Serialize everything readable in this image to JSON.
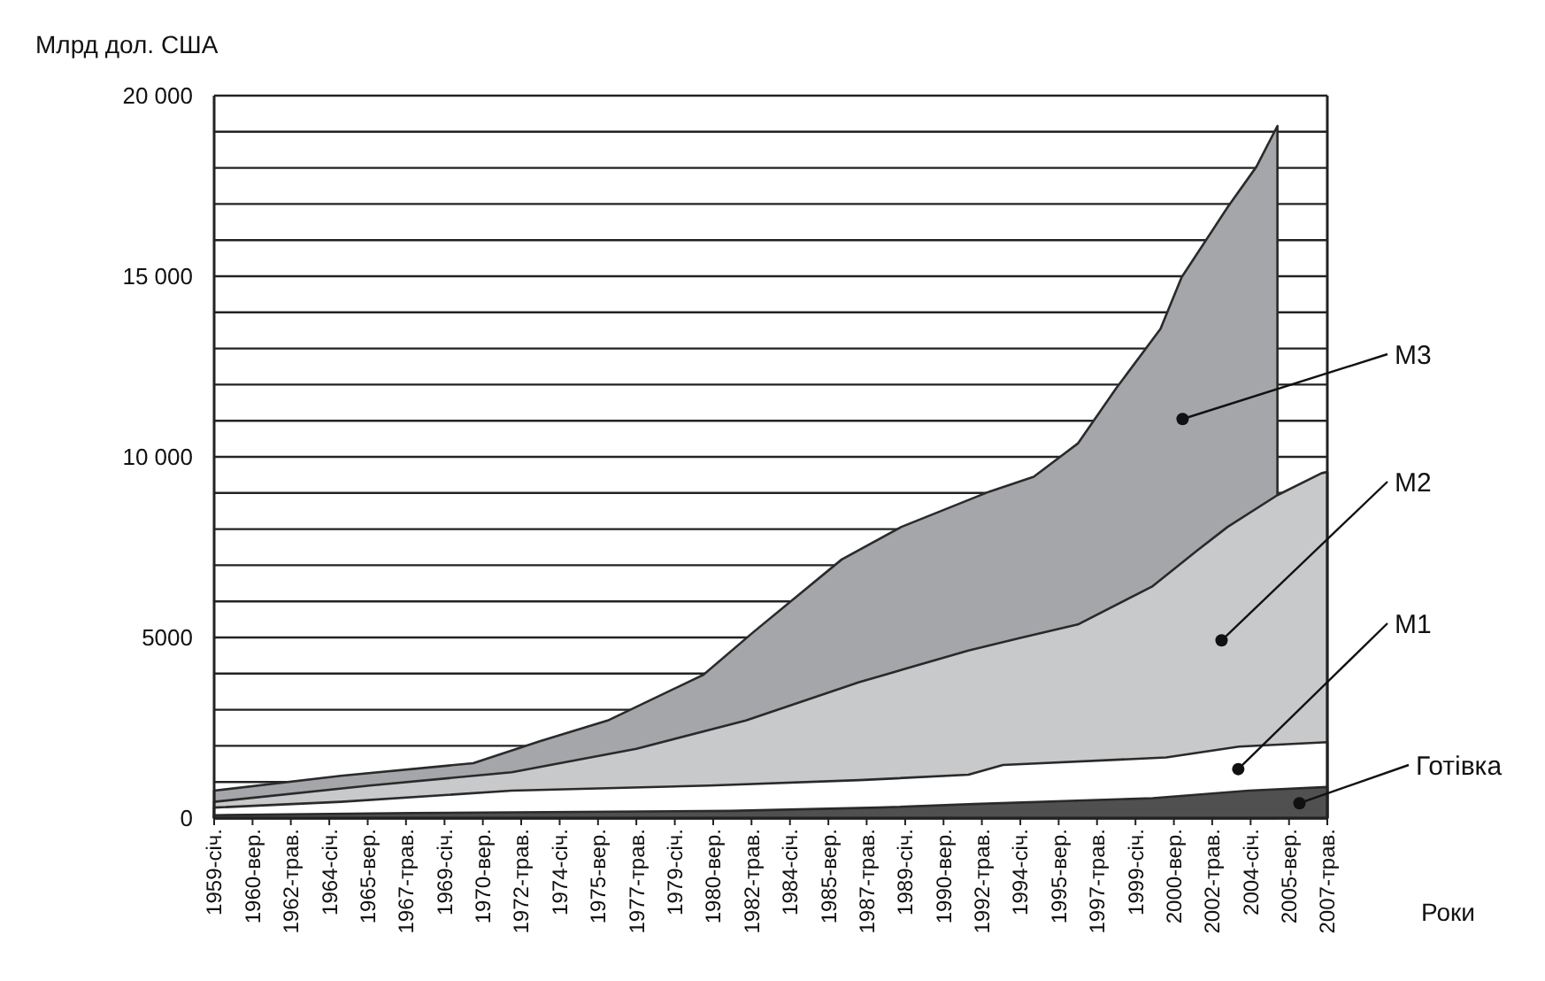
{
  "chart_data": {
    "type": "area",
    "ylabel": "Млрд дол. США",
    "xlabel": "Роки",
    "xlim": [
      "1959-01",
      "2007-05"
    ],
    "xticks": [
      {
        "value": "1959-01",
        "label": "1959-січ."
      },
      {
        "value": "1960-09",
        "label": "1960-вер."
      },
      {
        "value": "1962-05",
        "label": "1962-трав."
      },
      {
        "value": "1964-01",
        "label": "1964-січ."
      },
      {
        "value": "1965-09",
        "label": "1965-вер."
      },
      {
        "value": "1967-05",
        "label": "1967-трав."
      },
      {
        "value": "1969-01",
        "label": "1969-січ."
      },
      {
        "value": "1970-09",
        "label": "1970-вер."
      },
      {
        "value": "1972-05",
        "label": "1972-трав."
      },
      {
        "value": "1974-01",
        "label": "1974-січ."
      },
      {
        "value": "1975-09",
        "label": "1975-вер."
      },
      {
        "value": "1977-05",
        "label": "1977-трав."
      },
      {
        "value": "1979-01",
        "label": "1979-січ."
      },
      {
        "value": "1980-09",
        "label": "1980-вер."
      },
      {
        "value": "1982-05",
        "label": "1982-трав."
      },
      {
        "value": "1984-01",
        "label": "1984-січ."
      },
      {
        "value": "1985-09",
        "label": "1985-вер."
      },
      {
        "value": "1987-05",
        "label": "1987-трав."
      },
      {
        "value": "1989-01",
        "label": "1989-січ."
      },
      {
        "value": "1990-09",
        "label": "1990-вер."
      },
      {
        "value": "1992-05",
        "label": "1992-трав."
      },
      {
        "value": "1994-01",
        "label": "1994-січ."
      },
      {
        "value": "1995-09",
        "label": "1995-вер."
      },
      {
        "value": "1997-05",
        "label": "1997-трав."
      },
      {
        "value": "1999-01",
        "label": "1999-січ."
      },
      {
        "value": "2000-09",
        "label": "2000-вер."
      },
      {
        "value": "2002-05",
        "label": "2002-трав."
      },
      {
        "value": "2004-01",
        "label": "2004-січ."
      },
      {
        "value": "2005-09",
        "label": "2005-вер."
      },
      {
        "value": "2007-05",
        "label": "2007-трав."
      }
    ],
    "ylim": [
      0,
      20000
    ],
    "yticks": [
      0,
      {
        "value": 1000,
        "label": null
      },
      {
        "value": 2000,
        "label": null
      },
      {
        "value": 3000,
        "label": null
      },
      {
        "value": 4000,
        "label": null
      },
      {
        "value": 5000,
        "label": "5000"
      },
      {
        "value": 6000,
        "label": null
      },
      {
        "value": 7000,
        "label": null
      },
      {
        "value": 8000,
        "label": null
      },
      {
        "value": 9000,
        "label": null
      },
      {
        "value": 10000,
        "label": "10 000"
      },
      {
        "value": 11000,
        "label": null
      },
      {
        "value": 12000,
        "label": null
      },
      {
        "value": 13000,
        "label": null
      },
      {
        "value": 14000,
        "label": null
      },
      {
        "value": 15000,
        "label": "15 000"
      },
      {
        "value": 16000,
        "label": null
      },
      {
        "value": 17000,
        "label": null
      },
      {
        "value": 18000,
        "label": null
      },
      {
        "value": 19000,
        "label": null
      },
      {
        "value": 20000,
        "label": "20 000"
      }
    ],
    "grid": "y",
    "series": [
      {
        "name": "M3",
        "color": "#a5a6aa",
        "x": [
          "1959-01",
          "1964-07",
          "1970-04",
          "1973-03",
          "1976-02",
          "1980-04",
          "1982-06",
          "1986-04",
          "1988-11",
          "1992-09",
          "1994-08",
          "1996-07",
          "1998-03",
          "2000-02",
          "2001-01",
          "2003-01",
          "2004-04",
          "2005-03"
        ],
        "values": [
          760,
          1170,
          1520,
          2130,
          2700,
          3970,
          5150,
          7160,
          8060,
          9040,
          9450,
          10370,
          11900,
          13540,
          14970,
          16910,
          18030,
          19160
        ]
      },
      {
        "name": "M2",
        "color": "#c8c9cb",
        "x": [
          "1959-01",
          "1965-10",
          "1971-12",
          "1977-05",
          "1982-02",
          "1987-01",
          "1991-10",
          "1994-01",
          "1996-07",
          "1999-10",
          "2001-09",
          "2003-01",
          "2005-03",
          "2007-02",
          "2007-05"
        ],
        "values": [
          450,
          900,
          1270,
          1920,
          2700,
          3760,
          4640,
          4990,
          5360,
          6420,
          7400,
          8060,
          8940,
          9550,
          9580
        ]
      },
      {
        "name": "M1",
        "color": "#ffffff",
        "x": [
          "1959-01",
          "1964-07",
          "1971-12",
          "1980-07",
          "1987-01",
          "1991-10",
          "1993-04",
          "2000-05",
          "2003-07",
          "2007-05"
        ],
        "values": [
          290,
          450,
          760,
          900,
          1050,
          1200,
          1470,
          1680,
          1980,
          2100
        ]
      },
      {
        "name": "Готівка",
        "color": "#505050",
        "x": [
          "1959-01",
          "1967-09",
          "1981-06",
          "1987-11",
          "1992-01",
          "1999-10",
          "2003-12",
          "2007-05"
        ],
        "values": [
          80,
          140,
          200,
          290,
          390,
          550,
          760,
          860
        ]
      }
    ]
  }
}
